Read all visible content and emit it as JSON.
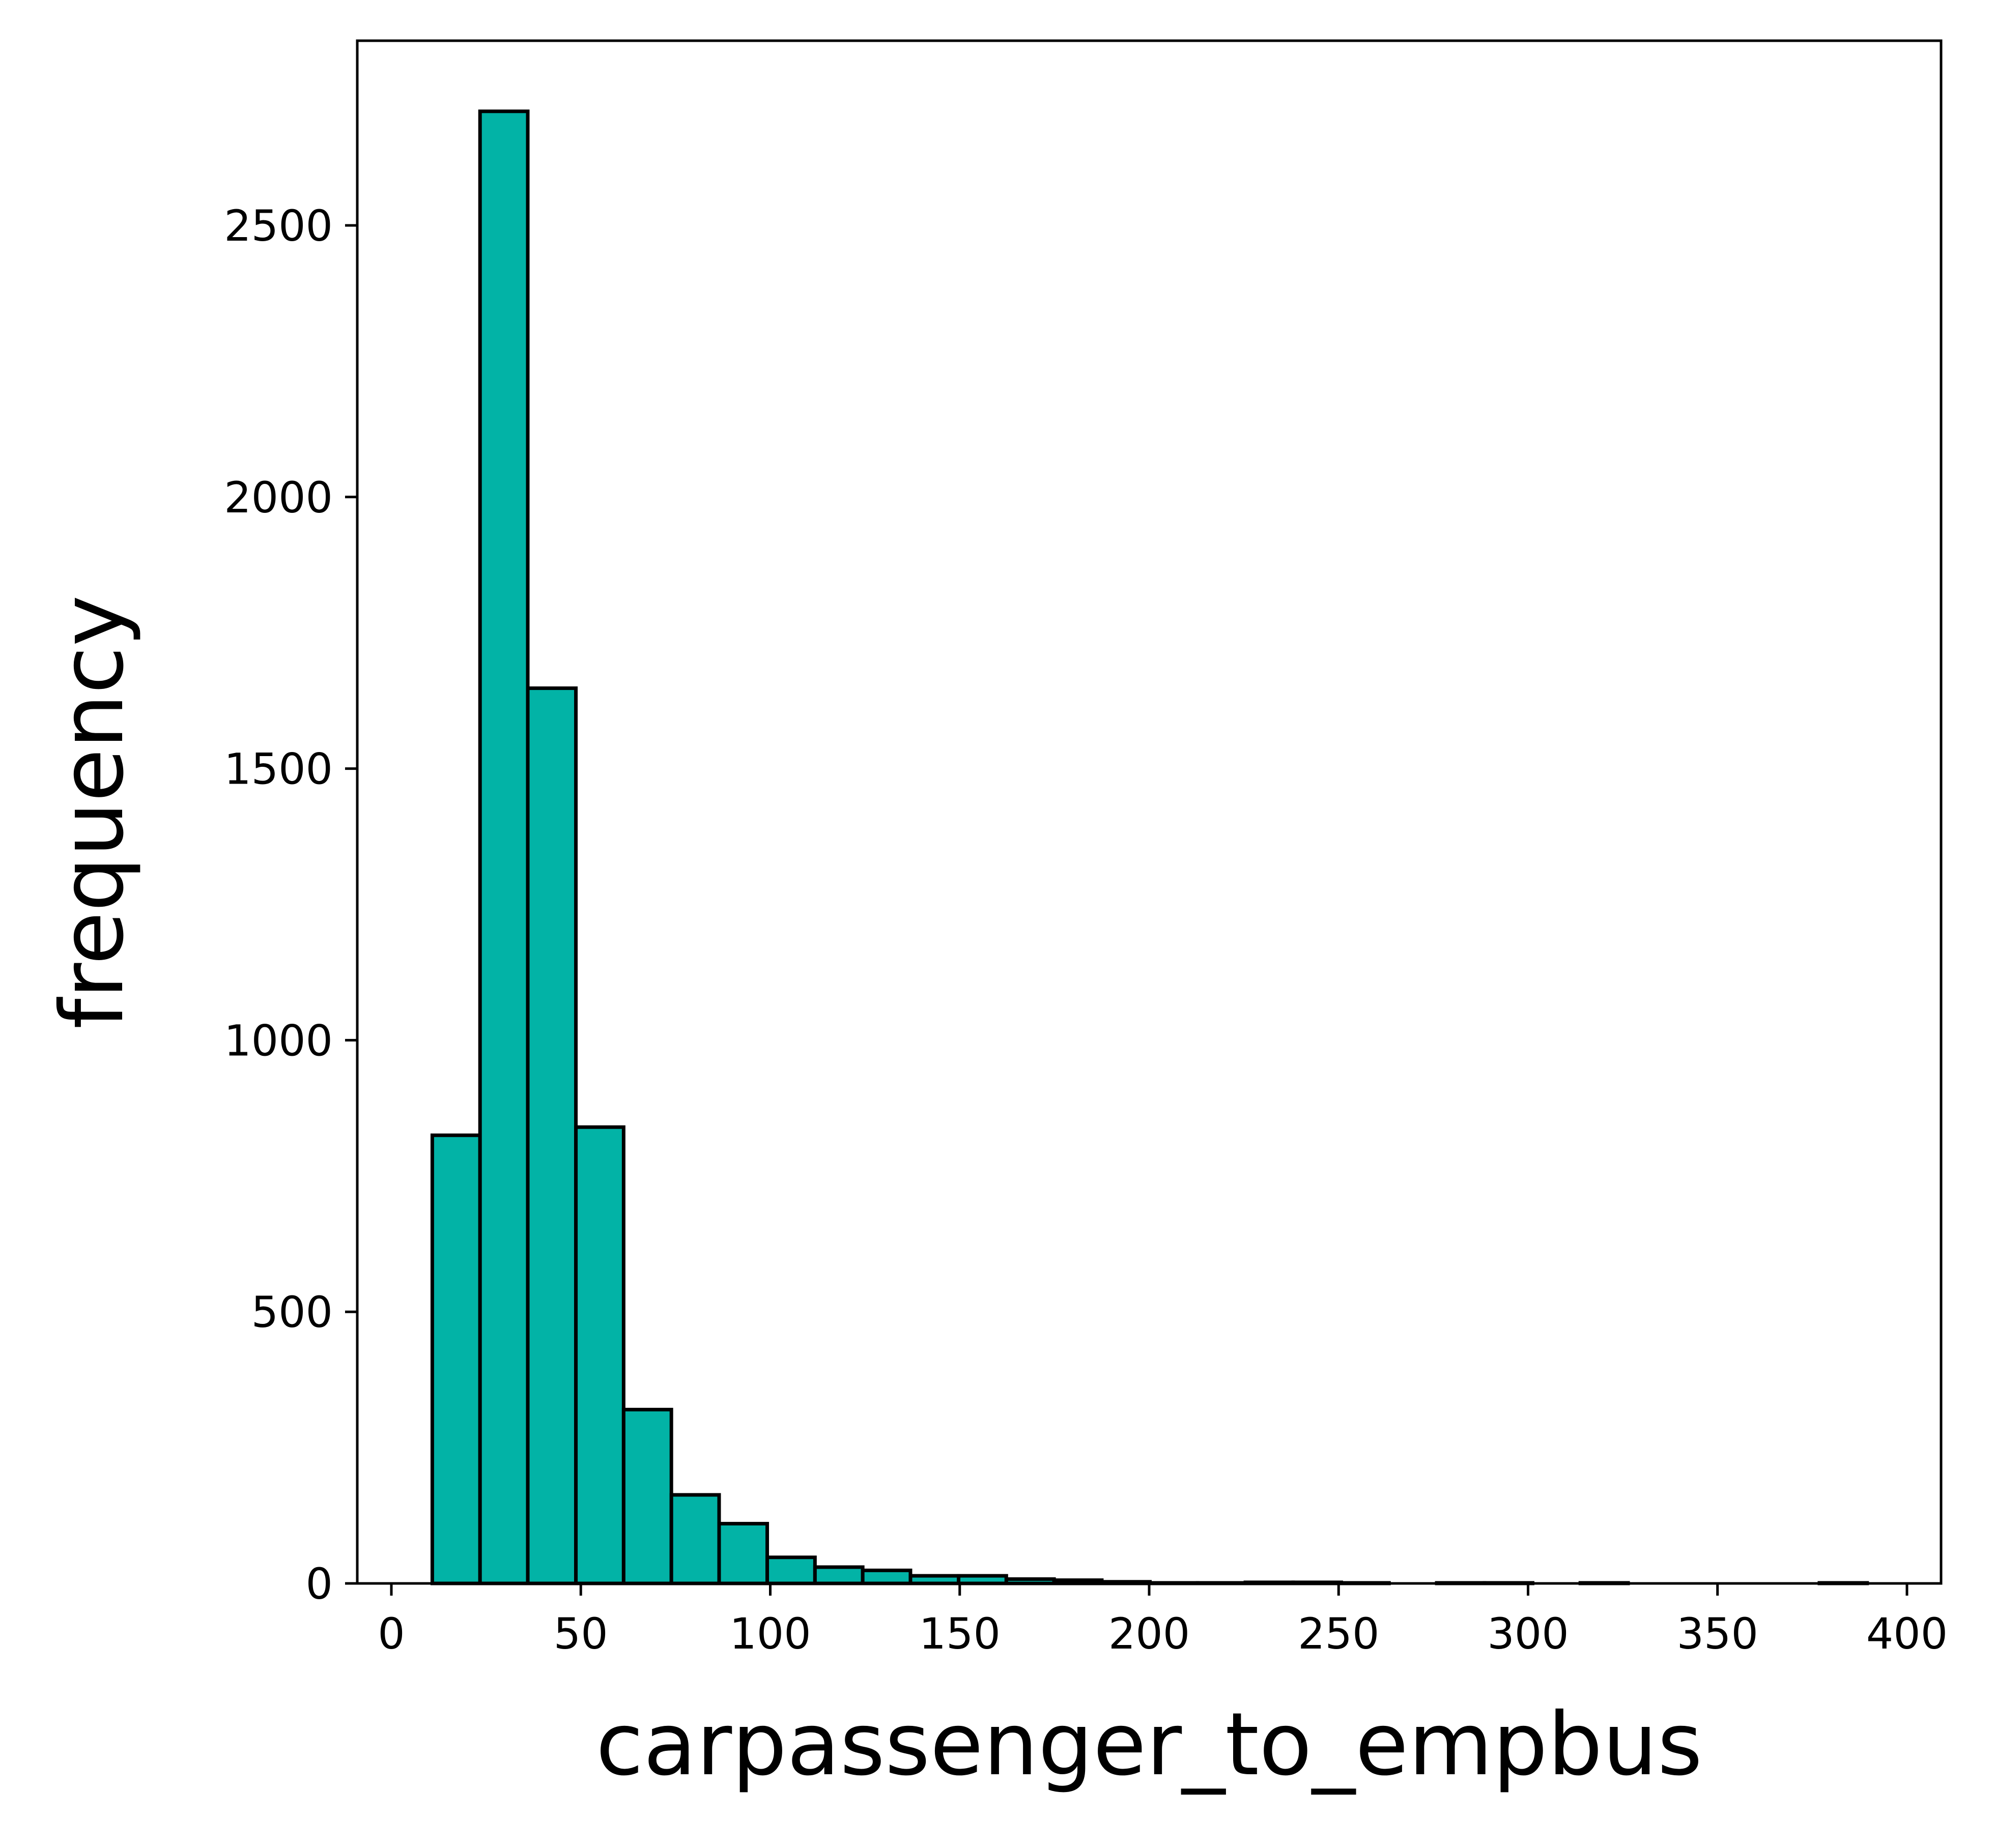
{
  "chart_data": {
    "type": "bar",
    "title": "",
    "xlabel": "carpassenger_to_empbus",
    "ylabel": "frequency",
    "xlim": [
      -9,
      409
    ],
    "ylim": [
      0,
      2840
    ],
    "xticks": [
      0,
      50,
      100,
      150,
      200,
      250,
      300,
      350,
      400
    ],
    "yticks": [
      0,
      500,
      1000,
      1500,
      2000,
      2500
    ],
    "grid": false,
    "legend": false,
    "colors": {
      "bar_fill": "#02b3a6",
      "bar_edge": "#000000"
    },
    "bins": [
      {
        "x0": 10.8,
        "x1": 23.4,
        "count": 825
      },
      {
        "x0": 23.4,
        "x1": 36.0,
        "count": 2710
      },
      {
        "x0": 36.0,
        "x1": 48.7,
        "count": 1648
      },
      {
        "x0": 48.7,
        "x1": 61.3,
        "count": 840
      },
      {
        "x0": 61.3,
        "x1": 73.9,
        "count": 320
      },
      {
        "x0": 73.9,
        "x1": 86.5,
        "count": 163
      },
      {
        "x0": 86.5,
        "x1": 99.2,
        "count": 110
      },
      {
        "x0": 99.2,
        "x1": 111.8,
        "count": 48
      },
      {
        "x0": 111.8,
        "x1": 124.4,
        "count": 30
      },
      {
        "x0": 124.4,
        "x1": 137.0,
        "count": 24
      },
      {
        "x0": 137.0,
        "x1": 149.7,
        "count": 14
      },
      {
        "x0": 149.7,
        "x1": 162.3,
        "count": 14
      },
      {
        "x0": 162.3,
        "x1": 174.9,
        "count": 8
      },
      {
        "x0": 174.9,
        "x1": 187.5,
        "count": 6
      },
      {
        "x0": 187.5,
        "x1": 200.2,
        "count": 3
      },
      {
        "x0": 200.2,
        "x1": 212.8,
        "count": 1
      },
      {
        "x0": 212.8,
        "x1": 225.4,
        "count": 1
      },
      {
        "x0": 225.4,
        "x1": 238.0,
        "count": 2
      },
      {
        "x0": 238.0,
        "x1": 250.7,
        "count": 2
      },
      {
        "x0": 250.7,
        "x1": 263.3,
        "count": 1
      },
      {
        "x0": 263.3,
        "x1": 275.9,
        "count": 0
      },
      {
        "x0": 275.9,
        "x1": 288.5,
        "count": 1
      },
      {
        "x0": 288.5,
        "x1": 301.2,
        "count": 1
      },
      {
        "x0": 301.2,
        "x1": 313.8,
        "count": 0
      },
      {
        "x0": 313.8,
        "x1": 326.4,
        "count": 1
      },
      {
        "x0": 326.4,
        "x1": 339.0,
        "count": 0
      },
      {
        "x0": 339.0,
        "x1": 351.7,
        "count": 0
      },
      {
        "x0": 351.7,
        "x1": 364.3,
        "count": 0
      },
      {
        "x0": 364.3,
        "x1": 376.9,
        "count": 0
      },
      {
        "x0": 376.9,
        "x1": 389.5,
        "count": 1
      }
    ]
  }
}
